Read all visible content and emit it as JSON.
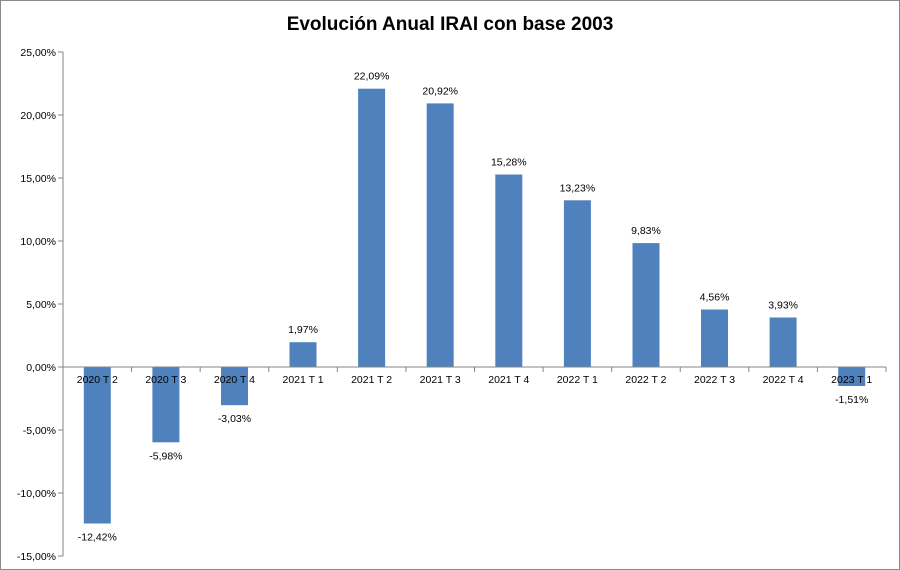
{
  "chart_data": {
    "type": "bar",
    "title": "Evolución Anual IRAI con base 2003",
    "xlabel": "",
    "ylabel": "",
    "ylim": [
      -15,
      25
    ],
    "ytick_values": [
      -15,
      -10,
      -5,
      0,
      5,
      10,
      15,
      20,
      25
    ],
    "ytick_labels": [
      "-15,00%",
      "-10,00%",
      "-5,00%",
      "0,00%",
      "5,00%",
      "10,00%",
      "15,00%",
      "20,00%",
      "25,00%"
    ],
    "categories": [
      "2020 T 2",
      "2020 T 3",
      "2020 T 4",
      "2021 T 1",
      "2021 T 2",
      "2021 T 3",
      "2021 T 4",
      "2022 T 1",
      "2022 T 2",
      "2022 T 3",
      "2022 T 4",
      "2023 T 1"
    ],
    "values": [
      -12.42,
      -5.98,
      -3.03,
      1.97,
      22.09,
      20.92,
      15.28,
      13.23,
      9.83,
      4.56,
      3.93,
      -1.51
    ],
    "data_labels": [
      "-12,42%",
      "-5,98%",
      "-3,03%",
      "1,97%",
      "22,09%",
      "20,92%",
      "15,28%",
      "13,23%",
      "9,83%",
      "4,56%",
      "3,93%",
      "-1,51%"
    ],
    "legend": "none",
    "grid": false,
    "bar_color": "#4f81bd"
  }
}
